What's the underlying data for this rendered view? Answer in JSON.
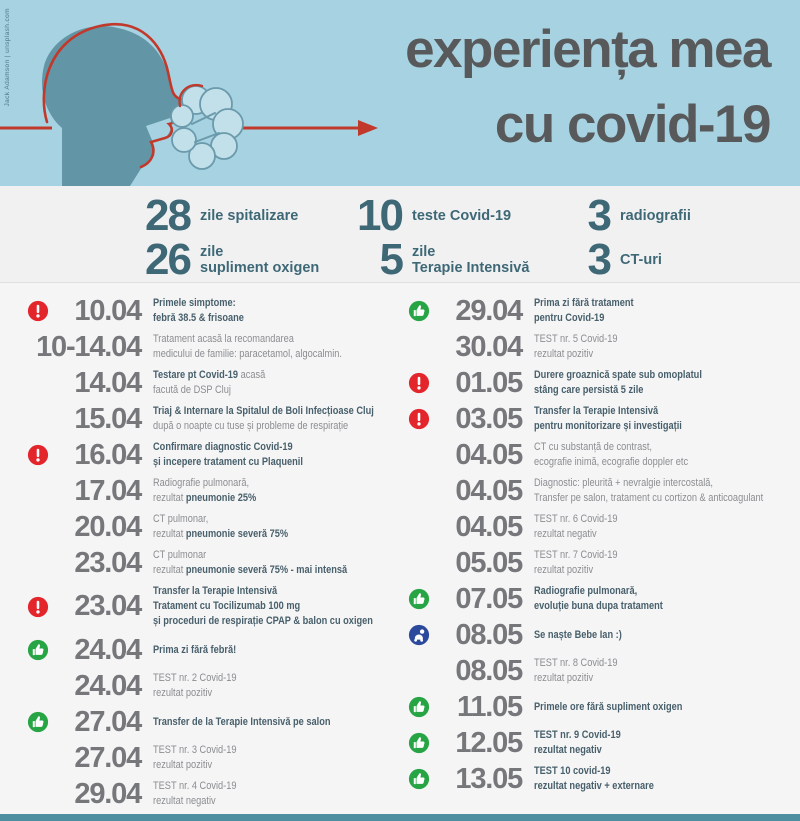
{
  "credit": "Jack Adamson | unsplash.com",
  "header": {
    "title_line1": "experiența mea",
    "title_line2": "cu covid-19"
  },
  "colors": {
    "header_bg": "#a7d2e1",
    "head_teal": "#6296a7",
    "arrow_red": "#c0392b",
    "title_gray": "#58595b",
    "stat_teal": "#3e6876",
    "date_gray": "#76777a",
    "text_gray": "#8b8d90",
    "text_bold_teal": "#48606b",
    "alert_red": "#e2262b",
    "good_green": "#27a444",
    "baby_blue": "#2b4a9b",
    "bottom_bar": "#4d8ea1"
  },
  "stats": [
    {
      "value": "28",
      "label_lines": [
        "zile spitalizare"
      ]
    },
    {
      "value": "26",
      "label_lines": [
        "zile",
        "supliment oxigen"
      ]
    },
    {
      "value": "10",
      "label_lines": [
        "teste Covid-19"
      ]
    },
    {
      "value": "5",
      "label_lines": [
        "zile",
        "Terapie Intensivă"
      ]
    },
    {
      "value": "3",
      "label_lines": [
        "radiografii"
      ]
    },
    {
      "value": "3",
      "label_lines": [
        "CT-uri"
      ]
    }
  ],
  "timeline": {
    "left": [
      {
        "date": "10.04",
        "icon": "alert",
        "lines": [
          [
            {
              "t": "Primele simptome:",
              "b": true
            }
          ],
          [
            {
              "t": "febră 38.5 & frisoane",
              "b": true
            }
          ]
        ]
      },
      {
        "date": "10-14.04",
        "icon": "none",
        "lines": [
          [
            {
              "t": "Tratament acasă la recomandarea",
              "b": false
            }
          ],
          [
            {
              "t": "medicului de familie: paracetamol, algocalmin.",
              "b": false
            }
          ]
        ]
      },
      {
        "date": "14.04",
        "icon": "none",
        "lines": [
          [
            {
              "t": "Testare pt Covid-19",
              "b": true
            },
            {
              "t": " acasă",
              "b": false
            }
          ],
          [
            {
              "t": "facută de DSP Cluj",
              "b": false
            }
          ]
        ]
      },
      {
        "date": "15.04",
        "icon": "none",
        "lines": [
          [
            {
              "t": "Triaj & Internare la Spitalul de Boli Infecțioase Cluj",
              "b": true
            }
          ],
          [
            {
              "t": "după o noapte cu tuse și probleme de respirație",
              "b": false
            }
          ]
        ]
      },
      {
        "date": "16.04",
        "icon": "alert",
        "lines": [
          [
            {
              "t": "Confirmare diagnostic Covid-19",
              "b": true
            }
          ],
          [
            {
              "t": "și incepere tratament cu Plaquenil",
              "b": true
            }
          ]
        ]
      },
      {
        "date": "17.04",
        "icon": "none",
        "lines": [
          [
            {
              "t": "Radiografie pulmonară,",
              "b": false
            }
          ],
          [
            {
              "t": "rezultat ",
              "b": false
            },
            {
              "t": "pneumonie 25%",
              "b": true
            }
          ]
        ]
      },
      {
        "date": "20.04",
        "icon": "none",
        "lines": [
          [
            {
              "t": "CT pulmonar,",
              "b": false
            }
          ],
          [
            {
              "t": "rezultat ",
              "b": false
            },
            {
              "t": "pneumonie severă 75%",
              "b": true
            }
          ]
        ]
      },
      {
        "date": "23.04",
        "icon": "none",
        "lines": [
          [
            {
              "t": "CT pulmonar",
              "b": false
            }
          ],
          [
            {
              "t": "rezultat ",
              "b": false
            },
            {
              "t": "pneumonie severă 75% - mai intensă",
              "b": true
            }
          ]
        ]
      },
      {
        "date": "23.04",
        "icon": "alert",
        "lines": [
          [
            {
              "t": "Transfer la Terapie Intensivă",
              "b": true
            }
          ],
          [
            {
              "t": "Tratament cu Tocilizumab 100 mg",
              "b": true
            }
          ],
          [
            {
              "t": "și proceduri de respirație CPAP & balon cu oxigen",
              "b": true
            }
          ]
        ]
      },
      {
        "date": "24.04",
        "icon": "good",
        "lines": [
          [
            {
              "t": "Prima zi fără febră!",
              "b": true
            }
          ]
        ]
      },
      {
        "date": "24.04",
        "icon": "none",
        "lines": [
          [
            {
              "t": "TEST nr. 2 Covid-19",
              "b": false
            }
          ],
          [
            {
              "t": "rezultat pozitiv",
              "b": false
            }
          ]
        ]
      },
      {
        "date": "27.04",
        "icon": "good",
        "lines": [
          [
            {
              "t": "Transfer de la Terapie Intensivă pe salon",
              "b": true
            }
          ]
        ]
      },
      {
        "date": "27.04",
        "icon": "none",
        "lines": [
          [
            {
              "t": "TEST nr. 3 Covid-19",
              "b": false
            }
          ],
          [
            {
              "t": "rezultat pozitiv",
              "b": false
            }
          ]
        ]
      },
      {
        "date": "29.04",
        "icon": "none",
        "lines": [
          [
            {
              "t": "TEST nr. 4 Covid-19",
              "b": false
            }
          ],
          [
            {
              "t": "rezultat negativ",
              "b": false
            }
          ]
        ]
      }
    ],
    "right": [
      {
        "date": "29.04",
        "icon": "good",
        "lines": [
          [
            {
              "t": "Prima zi fără tratament",
              "b": true
            }
          ],
          [
            {
              "t": "pentru Covid-19",
              "b": true
            }
          ]
        ]
      },
      {
        "date": "30.04",
        "icon": "none",
        "lines": [
          [
            {
              "t": "TEST nr. 5 Covid-19",
              "b": false
            }
          ],
          [
            {
              "t": "rezultat pozitiv",
              "b": false
            }
          ]
        ]
      },
      {
        "date": "01.05",
        "icon": "alert",
        "lines": [
          [
            {
              "t": "Durere groaznică spate sub omoplatul",
              "b": true
            }
          ],
          [
            {
              "t": "stâng care persistă 5 zile",
              "b": true
            }
          ]
        ]
      },
      {
        "date": "03.05",
        "icon": "alert",
        "lines": [
          [
            {
              "t": "Transfer la Terapie Intensivă",
              "b": true
            }
          ],
          [
            {
              "t": "pentru monitorizare și investigații",
              "b": true
            }
          ]
        ]
      },
      {
        "date": "04.05",
        "icon": "none",
        "lines": [
          [
            {
              "t": "CT cu substanță de contrast,",
              "b": false
            }
          ],
          [
            {
              "t": "ecografie inimă, ecografie doppler etc",
              "b": false
            }
          ]
        ]
      },
      {
        "date": "04.05",
        "icon": "none",
        "lines": [
          [
            {
              "t": "Diagnostic: pleurită + nevralgie intercostală,",
              "b": false
            }
          ],
          [
            {
              "t": "Transfer pe salon, tratament cu cortizon & anticoagulant",
              "b": false
            }
          ]
        ]
      },
      {
        "date": "04.05",
        "icon": "none",
        "lines": [
          [
            {
              "t": "TEST nr. 6 Covid-19",
              "b": false
            }
          ],
          [
            {
              "t": "rezultat negativ",
              "b": false
            }
          ]
        ]
      },
      {
        "date": "05.05",
        "icon": "none",
        "lines": [
          [
            {
              "t": "TEST nr. 7 Covid-19",
              "b": false
            }
          ],
          [
            {
              "t": "rezultat pozitiv",
              "b": false
            }
          ]
        ]
      },
      {
        "date": "07.05",
        "icon": "good",
        "lines": [
          [
            {
              "t": "Radiografie pulmonară,",
              "b": true
            }
          ],
          [
            {
              "t": "evoluție buna dupa tratament",
              "b": true
            }
          ]
        ]
      },
      {
        "date": "08.05",
        "icon": "baby",
        "lines": [
          [
            {
              "t": "Se naște Bebe Ian :)",
              "b": true
            }
          ]
        ]
      },
      {
        "date": "08.05",
        "icon": "none",
        "lines": [
          [
            {
              "t": "TEST nr. 8 Covid-19",
              "b": false
            }
          ],
          [
            {
              "t": "rezultat pozitiv",
              "b": false
            }
          ]
        ]
      },
      {
        "date": "11.05",
        "icon": "good",
        "lines": [
          [
            {
              "t": "Primele ore fără supliment oxigen",
              "b": true
            }
          ]
        ]
      },
      {
        "date": "12.05",
        "icon": "good",
        "lines": [
          [
            {
              "t": "TEST nr. 9 Covid-19",
              "b": true
            }
          ],
          [
            {
              "t": "rezultat negativ",
              "b": true
            }
          ]
        ]
      },
      {
        "date": "13.05",
        "icon": "good",
        "lines": [
          [
            {
              "t": "TEST 10 covid-19",
              "b": true
            }
          ],
          [
            {
              "t": "rezultat negativ + externare",
              "b": true
            }
          ]
        ]
      }
    ]
  }
}
